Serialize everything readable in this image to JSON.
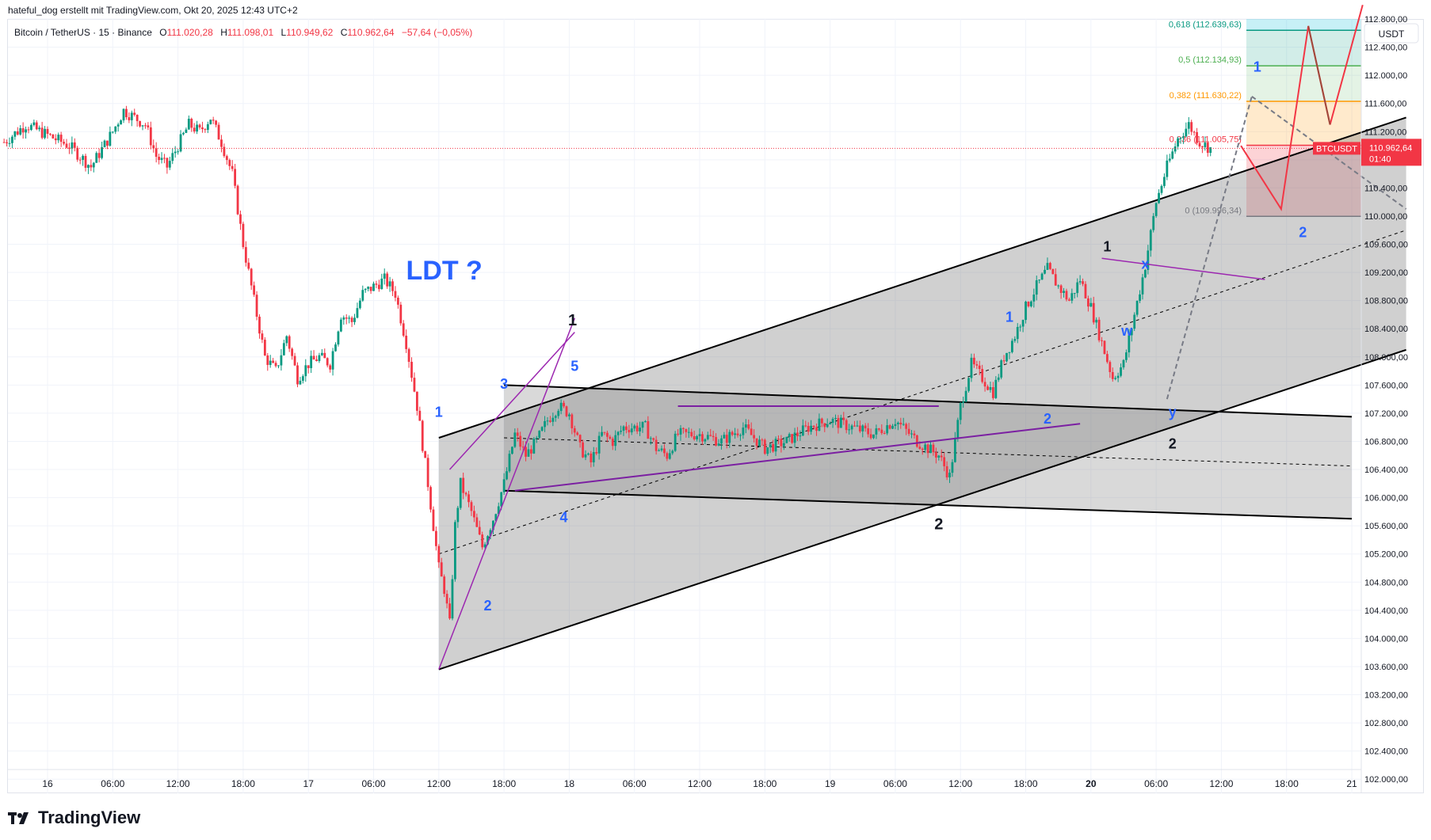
{
  "header": {
    "attribution": "hateful_dog erstellt mit TradingView.com, Okt 20, 2025 12:43 UTC+2",
    "symbol": "Bitcoin / TetherUS · 15 · Binance",
    "o_label": "O",
    "o_value": "111.020,28",
    "h_label": "H",
    "h_value": "111.098,01",
    "l_label": "L",
    "l_value": "110.949,62",
    "c_label": "C",
    "c_value": "110.962,64",
    "change": "−57,64 (−0,05%)"
  },
  "brand": {
    "name": "TradingView"
  },
  "colors": {
    "up": "#089981",
    "down": "#f23645",
    "channel": "#9e9e9e",
    "label_blue": "#2962ff",
    "purple": "#9c27b0"
  },
  "chart_data": {
    "type": "candlestick",
    "symbol": "BTCUSDT",
    "currency_label": "USDT",
    "last_price": "110.962,64",
    "countdown": "01:40",
    "ylim": [
      101800,
      112800
    ],
    "y_ticks": [
      "112.800,00",
      "112.400,00",
      "112.000,00",
      "111.600,00",
      "111.200,00",
      "110.800,00",
      "110.400,00",
      "110.000,00",
      "109.600,00",
      "109.200,00",
      "108.800,00",
      "108.400,00",
      "108.000,00",
      "107.600,00",
      "107.200,00",
      "106.800,00",
      "106.400,00",
      "106.000,00",
      "105.600,00",
      "105.200,00",
      "104.800,00",
      "104.400,00",
      "104.000,00",
      "103.600,00",
      "103.200,00",
      "102.800,00",
      "102.400,00",
      "102.000,00"
    ],
    "x_ticks": [
      {
        "label": "16",
        "h": 0,
        "bold": false
      },
      {
        "label": "06:00",
        "h": 6,
        "bold": false
      },
      {
        "label": "12:00",
        "h": 12,
        "bold": false
      },
      {
        "label": "18:00",
        "h": 18,
        "bold": false
      },
      {
        "label": "17",
        "h": 24,
        "bold": false
      },
      {
        "label": "06:00",
        "h": 30,
        "bold": false
      },
      {
        "label": "12:00",
        "h": 36,
        "bold": false
      },
      {
        "label": "18:00",
        "h": 42,
        "bold": false
      },
      {
        "label": "18",
        "h": 48,
        "bold": false
      },
      {
        "label": "06:00",
        "h": 54,
        "bold": false
      },
      {
        "label": "12:00",
        "h": 60,
        "bold": false
      },
      {
        "label": "18:00",
        "h": 66,
        "bold": false
      },
      {
        "label": "19",
        "h": 72,
        "bold": false
      },
      {
        "label": "06:00",
        "h": 78,
        "bold": false
      },
      {
        "label": "12:00",
        "h": 84,
        "bold": false
      },
      {
        "label": "18:00",
        "h": 90,
        "bold": false
      },
      {
        "label": "20",
        "h": 96,
        "bold": true
      },
      {
        "label": "06:00",
        "h": 102,
        "bold": false
      },
      {
        "label": "12:00",
        "h": 108,
        "bold": false
      },
      {
        "label": "18:00",
        "h": 114,
        "bold": false
      },
      {
        "label": "21",
        "h": 120,
        "bold": false
      }
    ],
    "price_path": [
      [
        -4,
        111050
      ],
      [
        -2,
        111300
      ],
      [
        0,
        111150
      ],
      [
        2,
        111000
      ],
      [
        4,
        110700
      ],
      [
        6,
        111200
      ],
      [
        7,
        111500
      ],
      [
        9,
        111300
      ],
      [
        10,
        110850
      ],
      [
        11,
        110700
      ],
      [
        12,
        111000
      ],
      [
        13,
        111300
      ],
      [
        14,
        111200
      ],
      [
        15,
        111400
      ],
      [
        16,
        111050
      ],
      [
        17,
        110600
      ],
      [
        18,
        109600
      ],
      [
        19,
        108800
      ],
      [
        20,
        108000
      ],
      [
        21,
        107800
      ],
      [
        22,
        108300
      ],
      [
        23,
        107700
      ],
      [
        24,
        107900
      ],
      [
        25,
        108000
      ],
      [
        26,
        107900
      ],
      [
        27,
        108600
      ],
      [
        28,
        108500
      ],
      [
        29,
        108900
      ],
      [
        30,
        109000
      ],
      [
        31,
        109100
      ],
      [
        32,
        108900
      ],
      [
        33,
        108200
      ],
      [
        34,
        107300
      ],
      [
        35,
        106200
      ],
      [
        36,
        105000
      ],
      [
        36.5,
        104700
      ],
      [
        37,
        104200
      ],
      [
        37.5,
        105600
      ],
      [
        38,
        106200
      ],
      [
        39,
        105800
      ],
      [
        40,
        105300
      ],
      [
        41,
        105700
      ],
      [
        42,
        106200
      ],
      [
        43,
        106900
      ],
      [
        44,
        106600
      ],
      [
        45,
        106800
      ],
      [
        46,
        107100
      ],
      [
        47,
        107300
      ],
      [
        48,
        107200
      ],
      [
        49,
        106700
      ],
      [
        50,
        106500
      ],
      [
        51,
        106900
      ],
      [
        52,
        106800
      ],
      [
        53,
        107000
      ],
      [
        55,
        107000
      ],
      [
        56,
        106700
      ],
      [
        57,
        106600
      ],
      [
        58,
        106900
      ],
      [
        60,
        106900
      ],
      [
        62,
        106800
      ],
      [
        64,
        107000
      ],
      [
        66,
        106700
      ],
      [
        68,
        106800
      ],
      [
        70,
        107000
      ],
      [
        72,
        107100
      ],
      [
        74,
        107000
      ],
      [
        76,
        106900
      ],
      [
        78,
        107100
      ],
      [
        80,
        106800
      ],
      [
        82,
        106600
      ],
      [
        83,
        106300
      ],
      [
        84,
        107300
      ],
      [
        85,
        107900
      ],
      [
        86,
        107700
      ],
      [
        87,
        107500
      ],
      [
        88,
        108000
      ],
      [
        89,
        108300
      ],
      [
        90,
        108700
      ],
      [
        91,
        109000
      ],
      [
        92,
        109250
      ],
      [
        93,
        109000
      ],
      [
        94,
        108800
      ],
      [
        95,
        109100
      ],
      [
        96,
        108700
      ],
      [
        97,
        108200
      ],
      [
        98,
        107700
      ],
      [
        99,
        107900
      ],
      [
        100,
        108600
      ],
      [
        101,
        109300
      ],
      [
        102,
        110200
      ],
      [
        103,
        110700
      ],
      [
        104,
        111100
      ],
      [
        105,
        111300
      ],
      [
        106,
        111050
      ],
      [
        107,
        110962
      ]
    ],
    "fibonacci": [
      {
        "label": "0,618 (112.639,63)",
        "price": 112639.63,
        "color": "#089981"
      },
      {
        "label": "0,5 (112.134,93)",
        "price": 112134.93,
        "color": "#4caf50"
      },
      {
        "label": "0,382 (111.630,22)",
        "price": 111630.22,
        "color": "#ff9800"
      },
      {
        "label": "0,236 (111.005,75)",
        "price": 111005.75,
        "color": "#f23645"
      },
      {
        "label": "0 (109.996,34)",
        "price": 109996.34,
        "color": "#787b86"
      }
    ],
    "annotations": [
      {
        "text": "LDT ?",
        "h": 36.5,
        "p": 109100,
        "color": "#2962ff",
        "size": 34,
        "weight": "bold"
      },
      {
        "text": "1",
        "h": 36,
        "p": 107150,
        "color": "#2962ff",
        "size": 18,
        "weight": "bold"
      },
      {
        "text": "2",
        "h": 40.5,
        "p": 104400,
        "color": "#2962ff",
        "size": 18,
        "weight": "bold"
      },
      {
        "text": "3",
        "h": 42,
        "p": 107550,
        "color": "#2962ff",
        "size": 18,
        "weight": "bold"
      },
      {
        "text": "4",
        "h": 47.5,
        "p": 105650,
        "color": "#2962ff",
        "size": 18,
        "weight": "bold"
      },
      {
        "text": "5",
        "h": 48.5,
        "p": 107800,
        "color": "#2962ff",
        "size": 18,
        "weight": "bold"
      },
      {
        "text": "1",
        "h": 48.3,
        "p": 108450,
        "color": "#131722",
        "size": 20,
        "weight": "bold"
      },
      {
        "text": "2",
        "h": 82,
        "p": 105550,
        "color": "#131722",
        "size": 20,
        "weight": "bold"
      },
      {
        "text": "1",
        "h": 88.5,
        "p": 108500,
        "color": "#2962ff",
        "size": 18,
        "weight": "bold"
      },
      {
        "text": "2",
        "h": 92,
        "p": 107050,
        "color": "#2962ff",
        "size": 18,
        "weight": "bold"
      },
      {
        "text": "1",
        "h": 97.5,
        "p": 109500,
        "color": "#131722",
        "size": 18,
        "weight": "bold"
      },
      {
        "text": "w",
        "h": 99.3,
        "p": 108300,
        "color": "#2962ff",
        "size": 18,
        "weight": "bold"
      },
      {
        "text": "x",
        "h": 101,
        "p": 109250,
        "color": "#2962ff",
        "size": 18,
        "weight": "bold"
      },
      {
        "text": "y",
        "h": 103.5,
        "p": 107150,
        "color": "#2962ff",
        "size": 18,
        "weight": "bold"
      },
      {
        "text": "2",
        "h": 103.5,
        "p": 106700,
        "color": "#131722",
        "size": 18,
        "weight": "bold"
      },
      {
        "text": "1",
        "h": 111.3,
        "p": 112050,
        "color": "#2962ff",
        "size": 18,
        "weight": "bold"
      },
      {
        "text": "2",
        "h": 115.5,
        "p": 109700,
        "color": "#2962ff",
        "size": 18,
        "weight": "bold"
      }
    ]
  }
}
